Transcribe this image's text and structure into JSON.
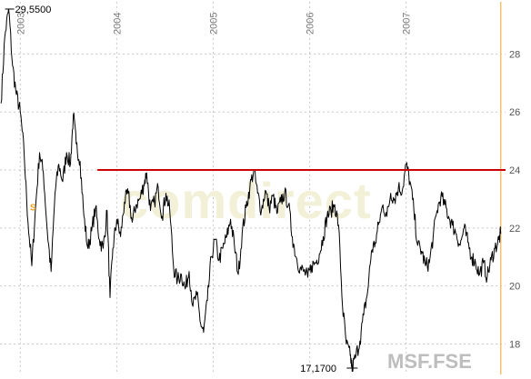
{
  "chart_data": {
    "type": "line",
    "title": "",
    "symbol": "MSF.FSE",
    "watermark": "comdirect",
    "marker_label": "S",
    "x_tick_labels": [
      "2003",
      "2004",
      "2005",
      "2006",
      "2007"
    ],
    "y_tick_labels": [
      "18",
      "20",
      "22",
      "24",
      "26",
      "28"
    ],
    "ylim": [
      16.95,
      29.8
    ],
    "xlim": [
      2002.79,
      2008.03
    ],
    "max_label": "29,5500",
    "min_label": "17,1700",
    "max_point": {
      "x": 2002.88,
      "y": 29.55
    },
    "min_point": {
      "x": 2006.44,
      "y": 17.17
    },
    "resistance_line": {
      "y": 24.0,
      "x_start": 2003.8,
      "x_end": 2008.03,
      "color": "#cc0000"
    },
    "current_marker": {
      "x": 2007.98,
      "color": "#f0c070"
    },
    "line_color": "#000000",
    "series": [
      {
        "values": [
          [
            2002.8,
            26.3
          ],
          [
            2002.84,
            28.6
          ],
          [
            2002.88,
            29.55
          ],
          [
            2002.92,
            27.6
          ],
          [
            2002.96,
            26.6
          ],
          [
            2003.0,
            26.0
          ],
          [
            2003.04,
            24.6
          ],
          [
            2003.08,
            22.2
          ],
          [
            2003.12,
            20.7
          ],
          [
            2003.16,
            22.8
          ],
          [
            2003.2,
            24.6
          ],
          [
            2003.24,
            23.9
          ],
          [
            2003.28,
            21.9
          ],
          [
            2003.32,
            20.5
          ],
          [
            2003.36,
            23.2
          ],
          [
            2003.4,
            24.2
          ],
          [
            2003.44,
            23.6
          ],
          [
            2003.48,
            24.6
          ],
          [
            2003.52,
            24.2
          ],
          [
            2003.55,
            25.9
          ],
          [
            2003.58,
            24.9
          ],
          [
            2003.62,
            24.3
          ],
          [
            2003.66,
            22.4
          ],
          [
            2003.7,
            21.3
          ],
          [
            2003.74,
            21.9
          ],
          [
            2003.78,
            22.7
          ],
          [
            2003.82,
            21.6
          ],
          [
            2003.86,
            21.3
          ],
          [
            2003.9,
            22.6
          ],
          [
            2003.93,
            19.6
          ],
          [
            2003.96,
            21.3
          ],
          [
            2004.0,
            22.3
          ],
          [
            2004.04,
            21.7
          ],
          [
            2004.08,
            22.9
          ],
          [
            2004.12,
            23.2
          ],
          [
            2004.16,
            22.2
          ],
          [
            2004.2,
            22.8
          ],
          [
            2004.24,
            23.0
          ],
          [
            2004.28,
            23.5
          ],
          [
            2004.31,
            23.9
          ],
          [
            2004.35,
            22.6
          ],
          [
            2004.39,
            22.9
          ],
          [
            2004.43,
            23.4
          ],
          [
            2004.47,
            22.4
          ],
          [
            2004.51,
            23.2
          ],
          [
            2004.55,
            22.6
          ],
          [
            2004.59,
            20.6
          ],
          [
            2004.63,
            20.2
          ],
          [
            2004.67,
            20.4
          ],
          [
            2004.71,
            19.9
          ],
          [
            2004.75,
            20.5
          ],
          [
            2004.79,
            19.3
          ],
          [
            2004.83,
            19.7
          ],
          [
            2004.87,
            18.7
          ],
          [
            2004.9,
            18.4
          ],
          [
            2004.94,
            19.5
          ],
          [
            2004.98,
            21.0
          ],
          [
            2005.02,
            21.6
          ],
          [
            2005.06,
            20.9
          ],
          [
            2005.1,
            21.3
          ],
          [
            2005.14,
            21.7
          ],
          [
            2005.18,
            22.3
          ],
          [
            2005.22,
            21.4
          ],
          [
            2005.26,
            20.4
          ],
          [
            2005.3,
            21.8
          ],
          [
            2005.34,
            22.7
          ],
          [
            2005.38,
            23.4
          ],
          [
            2005.42,
            24.0
          ],
          [
            2005.46,
            23.2
          ],
          [
            2005.5,
            22.6
          ],
          [
            2005.54,
            23.3
          ],
          [
            2005.58,
            22.7
          ],
          [
            2005.62,
            23.1
          ],
          [
            2005.66,
            22.5
          ],
          [
            2005.7,
            22.9
          ],
          [
            2005.74,
            23.2
          ],
          [
            2005.78,
            22.8
          ],
          [
            2005.82,
            21.7
          ],
          [
            2005.86,
            21.0
          ],
          [
            2005.9,
            20.6
          ],
          [
            2005.94,
            20.5
          ],
          [
            2005.98,
            20.3
          ],
          [
            2006.02,
            20.7
          ],
          [
            2006.06,
            20.8
          ],
          [
            2006.1,
            21.1
          ],
          [
            2006.14,
            21.7
          ],
          [
            2006.18,
            22.4
          ],
          [
            2006.22,
            22.6
          ],
          [
            2006.26,
            22.8
          ],
          [
            2006.3,
            22.1
          ],
          [
            2006.34,
            19.3
          ],
          [
            2006.38,
            18.0
          ],
          [
            2006.42,
            17.6
          ],
          [
            2006.44,
            17.17
          ],
          [
            2006.48,
            17.6
          ],
          [
            2006.52,
            18.1
          ],
          [
            2006.56,
            19.0
          ],
          [
            2006.6,
            19.8
          ],
          [
            2006.64,
            21.2
          ],
          [
            2006.68,
            21.5
          ],
          [
            2006.72,
            22.2
          ],
          [
            2006.76,
            22.8
          ],
          [
            2006.8,
            22.4
          ],
          [
            2006.84,
            23.2
          ],
          [
            2006.88,
            23.0
          ],
          [
            2006.92,
            23.4
          ],
          [
            2006.96,
            23.3
          ],
          [
            2007.0,
            24.2
          ],
          [
            2007.04,
            23.6
          ],
          [
            2007.08,
            22.6
          ],
          [
            2007.12,
            21.4
          ],
          [
            2007.16,
            21.2
          ],
          [
            2007.2,
            20.7
          ],
          [
            2007.24,
            20.8
          ],
          [
            2007.28,
            21.7
          ],
          [
            2007.32,
            22.6
          ],
          [
            2007.36,
            23.1
          ],
          [
            2007.4,
            22.8
          ],
          [
            2007.44,
            22.4
          ],
          [
            2007.48,
            22.1
          ],
          [
            2007.52,
            21.8
          ],
          [
            2007.56,
            21.4
          ],
          [
            2007.6,
            22.0
          ],
          [
            2007.64,
            21.5
          ],
          [
            2007.68,
            21.0
          ],
          [
            2007.72,
            20.8
          ],
          [
            2007.76,
            20.4
          ],
          [
            2007.8,
            20.8
          ],
          [
            2007.84,
            20.3
          ],
          [
            2007.88,
            20.9
          ],
          [
            2007.92,
            21.3
          ],
          [
            2007.96,
            21.6
          ],
          [
            2007.98,
            21.8
          ]
        ]
      }
    ]
  }
}
